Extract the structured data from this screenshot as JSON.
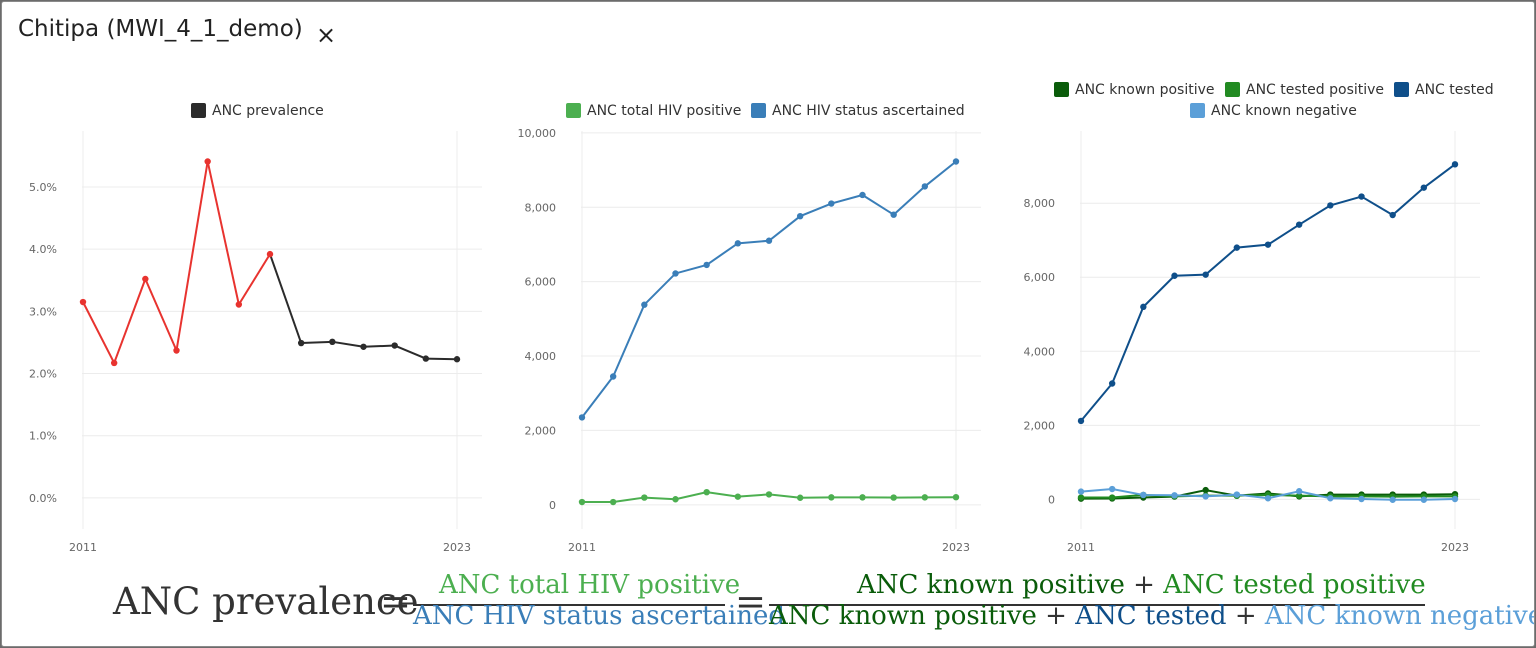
{
  "modal": {
    "title": "Chitipa (MWI_4_1_demo)",
    "close_label": "×"
  },
  "colors": {
    "prevalence_red": "#e8332f",
    "prevalence_black": "#2b2b2b",
    "total_positive": "#4caf50",
    "status_ascertained": "#3a7eb8",
    "known_positive": "#0a5c0a",
    "tested_positive": "#228b22",
    "tested": "#0f4f8a",
    "known_negative": "#5b9fd8"
  },
  "chart_data": [
    {
      "type": "line",
      "legend": [
        "ANC prevalence"
      ],
      "x_tick_labels": [
        "2011",
        "2023"
      ],
      "x": [
        2011,
        2012,
        2013,
        2014,
        2015,
        2016,
        2017,
        2018,
        2019,
        2020,
        2021,
        2022,
        2023
      ],
      "y_ticks": [
        "0.0%",
        "1.0%",
        "2.0%",
        "3.0%",
        "4.0%",
        "5.0%"
      ],
      "ylim": [
        -0.005,
        0.059
      ],
      "series": [
        {
          "name": "ANC prevalence",
          "values": [
            0.0315,
            0.0217,
            0.0352,
            0.0237,
            0.0541,
            0.0311,
            0.0392,
            0.0249,
            0.0251,
            0.0243,
            0.0245,
            0.0224,
            0.0223
          ],
          "segment_colors": [
            "red",
            "red",
            "red",
            "red",
            "red",
            "red",
            "red",
            "black",
            "black",
            "black",
            "black",
            "black",
            "black"
          ]
        }
      ]
    },
    {
      "type": "line",
      "legend": [
        "ANC total HIV positive",
        "ANC HIV status ascertained"
      ],
      "x_tick_labels": [
        "2011",
        "2023"
      ],
      "x": [
        2011,
        2012,
        2013,
        2014,
        2015,
        2016,
        2017,
        2018,
        2019,
        2020,
        2021,
        2022,
        2023
      ],
      "y_ticks": [
        "0",
        "2,000",
        "4,000",
        "6,000",
        "8,000",
        "10,000"
      ],
      "ylim": [
        -650,
        10050
      ],
      "series": [
        {
          "name": "ANC total HIV positive",
          "values": [
            75,
            75,
            195,
            150,
            340,
            220,
            280,
            190,
            200,
            200,
            195,
            200,
            205
          ]
        },
        {
          "name": "ANC HIV status ascertained",
          "values": [
            2350,
            3450,
            5380,
            6220,
            6450,
            7030,
            7100,
            7760,
            8100,
            8330,
            7800,
            8560,
            9230
          ]
        }
      ]
    },
    {
      "type": "line",
      "legend": [
        "ANC known positive",
        "ANC tested positive",
        "ANC tested",
        "ANC known negative"
      ],
      "x_tick_labels": [
        "2011",
        "2023"
      ],
      "x": [
        2011,
        2012,
        2013,
        2014,
        2015,
        2016,
        2017,
        2018,
        2019,
        2020,
        2021,
        2022,
        2023
      ],
      "y_ticks": [
        "0",
        "2,000",
        "4,000",
        "6,000",
        "8,000"
      ],
      "ylim": [
        -800,
        9950
      ],
      "series": [
        {
          "name": "ANC known positive",
          "values": [
            20,
            25,
            50,
            75,
            250,
            100,
            160,
            80,
            130,
            130,
            130,
            130,
            140
          ]
        },
        {
          "name": "ANC tested positive",
          "values": [
            50,
            50,
            120,
            80,
            100,
            100,
            120,
            100,
            80,
            80,
            75,
            80,
            80
          ]
        },
        {
          "name": "ANC tested",
          "values": [
            2120,
            3130,
            5200,
            6040,
            6070,
            6800,
            6880,
            7420,
            7940,
            8180,
            7680,
            8420,
            9050
          ]
        },
        {
          "name": "ANC known negative",
          "values": [
            210,
            280,
            120,
            110,
            80,
            130,
            30,
            220,
            30,
            10,
            -10,
            -10,
            10
          ]
        }
      ]
    }
  ],
  "formula": {
    "lhs": "ANC prevalence",
    "equals": "=",
    "frac1_num": "ANC total HIV positive",
    "frac1_den": "ANC HIV status ascertained",
    "frac2_num_a": "ANC known positive",
    "frac2_num_b": "ANC tested positive",
    "frac2_den_a": "ANC known positive",
    "frac2_den_b": "ANC tested",
    "frac2_den_c": "ANC known negative",
    "plus": "+"
  }
}
